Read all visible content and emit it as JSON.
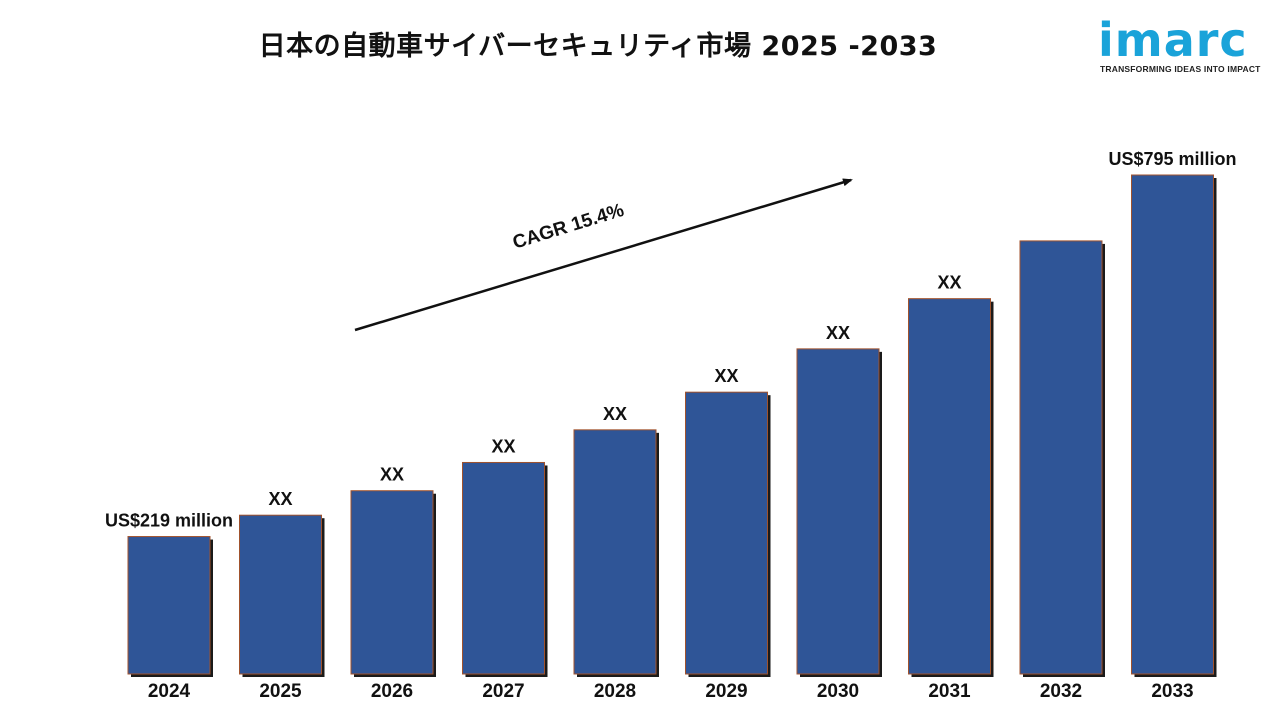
{
  "title": "日本の自動車サイバーセキュリティ市場 2025 -2033",
  "logo": {
    "name": "imarc",
    "tagline": "TRANSFORMING IDEAS INTO IMPACT",
    "color": "#1aa3d9"
  },
  "chart_data": {
    "type": "bar",
    "categories": [
      "2024",
      "2025",
      "2026",
      "2027",
      "2028",
      "2029",
      "2030",
      "2031",
      "2032",
      "2033"
    ],
    "values": [
      219,
      253,
      292,
      337,
      389,
      449,
      518,
      598,
      690,
      795
    ],
    "data_labels": [
      "US$219 million",
      "XX",
      "XX",
      "XX",
      "XX",
      "XX",
      "XX",
      "XX",
      "",
      "US$795 million"
    ],
    "annotation": "CAGR 15.4%",
    "bar_color": "#2f5597",
    "grid": false,
    "legend": "none"
  }
}
